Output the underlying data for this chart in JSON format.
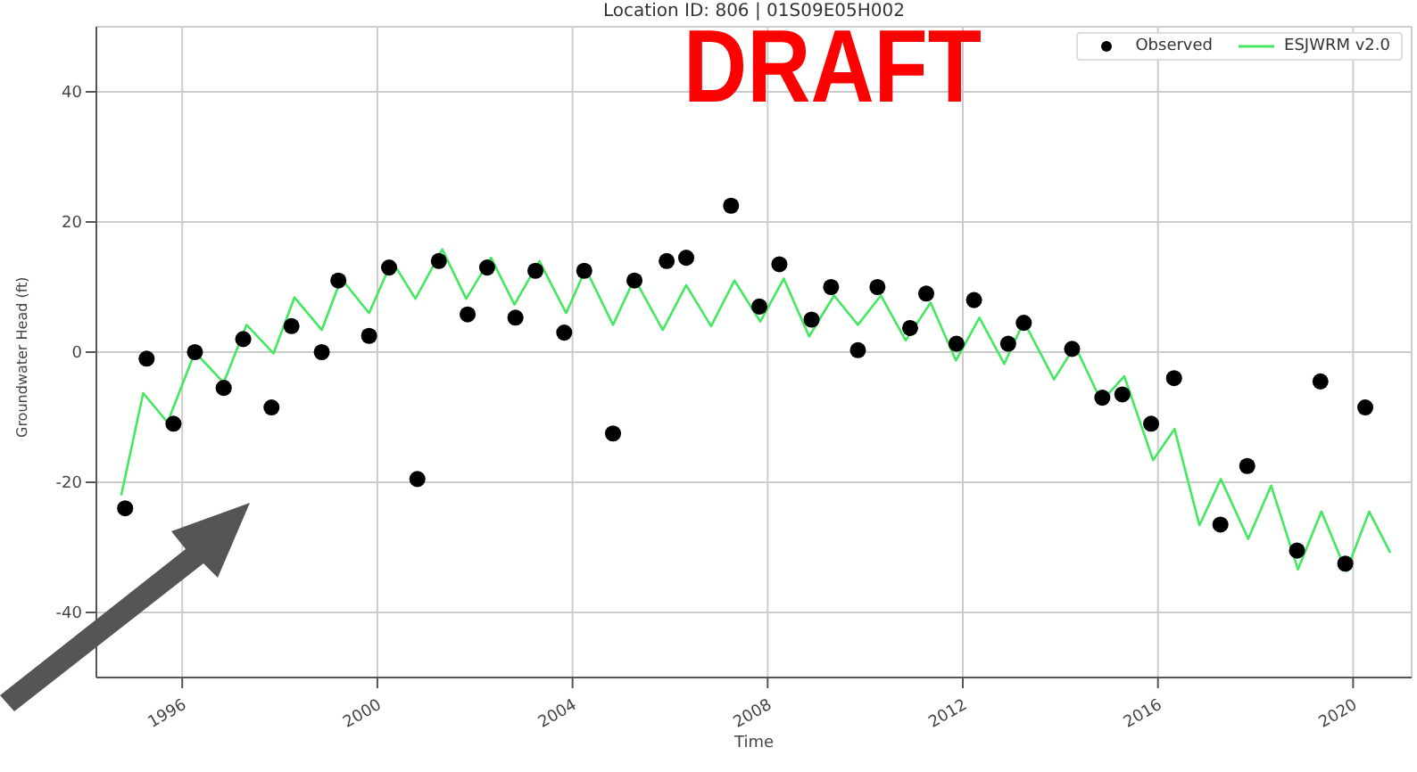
{
  "chart_data": {
    "type": "line",
    "title": "Location ID: 806 | 01S09E05H002",
    "xlabel": "Time",
    "ylabel": "Groundwater Head (ft)",
    "annotations": [
      "DRAFT"
    ],
    "xlim": [
      1994.24,
      2021.2
    ],
    "xticks": [
      1996,
      2000,
      2004,
      2008,
      2012,
      2016,
      2020
    ],
    "ylim": [
      -50,
      50
    ],
    "yticks": [
      -40,
      -20,
      0,
      20,
      40
    ],
    "grid": true,
    "legend": "top right",
    "series": [
      {
        "name": "Observed",
        "type": "scatter",
        "marker": "circle",
        "color": "#000000",
        "x": [
          1994.83,
          1995.27,
          1995.82,
          1996.26,
          1996.85,
          1997.25,
          1997.83,
          1998.24,
          1998.86,
          1999.2,
          1999.83,
          2000.24,
          2000.82,
          2001.26,
          2001.85,
          2002.25,
          2002.83,
          2003.24,
          2003.83,
          2004.24,
          2004.83,
          2005.27,
          2005.93,
          2006.33,
          2007.25,
          2007.83,
          2008.24,
          2008.9,
          2009.3,
          2009.85,
          2010.25,
          2010.92,
          2011.25,
          2011.87,
          2012.23,
          2012.93,
          2013.25,
          2014.24,
          2014.86,
          2015.27,
          2015.86,
          2016.33,
          2017.28,
          2017.83,
          2018.85,
          2019.33,
          2019.84,
          2020.25
        ],
        "values": [
          -24,
          -1,
          -11,
          0,
          -5.5,
          2,
          -8.5,
          4,
          0,
          11,
          2.5,
          13,
          -19.5,
          14,
          5.8,
          13,
          5.3,
          12.5,
          3,
          12.5,
          -12.5,
          11,
          14,
          14.5,
          22.5,
          7,
          13.5,
          5,
          10,
          0.3,
          10,
          3.7,
          9,
          1.3,
          8,
          1.3,
          4.5,
          0.5,
          -7,
          -6.5,
          -11,
          -4,
          -26.5,
          -17.5,
          -30.5,
          -4.5,
          -32.5,
          -8.5
        ]
      },
      {
        "name": "ESJWRM v2.0",
        "marker": "none",
        "color": "#44e860",
        "x": [
          1994.75,
          1995.2,
          1995.7,
          1996.26,
          1996.85,
          1997.32,
          1997.87,
          1998.3,
          1998.86,
          1999.26,
          1999.83,
          2000.3,
          2000.78,
          2001.33,
          2001.82,
          2002.33,
          2002.81,
          2003.32,
          2003.87,
          2004.27,
          2004.83,
          2005.27,
          2005.85,
          2006.33,
          2006.84,
          2007.32,
          2007.85,
          2008.33,
          2008.85,
          2009.36,
          2009.85,
          2010.32,
          2010.83,
          2011.34,
          2011.86,
          2012.34,
          2012.85,
          2013.25,
          2013.87,
          2014.3,
          2014.84,
          2015.31,
          2015.9,
          2016.34,
          2016.85,
          2017.29,
          2017.85,
          2018.32,
          2018.87,
          2019.35,
          2019.86,
          2020.33,
          2020.76
        ],
        "values": [
          -22,
          -6.3,
          -10.8,
          0,
          -4.7,
          4.2,
          -0.2,
          8.4,
          3.4,
          11.3,
          6,
          14,
          8.2,
          15.8,
          8.2,
          14.5,
          7.3,
          14,
          6,
          12.8,
          4.2,
          11.3,
          3.4,
          10.3,
          4,
          11,
          4.7,
          11.3,
          2.4,
          8.7,
          4.2,
          8.7,
          1.8,
          7.6,
          -1.3,
          5.3,
          -1.8,
          4.7,
          -4.2,
          1,
          -7.6,
          -3.7,
          -16.6,
          -11.8,
          -26.6,
          -19.5,
          -28.7,
          -20.5,
          -33.4,
          -24.5,
          -33.7,
          -24.5,
          -30.8
        ]
      }
    ]
  }
}
